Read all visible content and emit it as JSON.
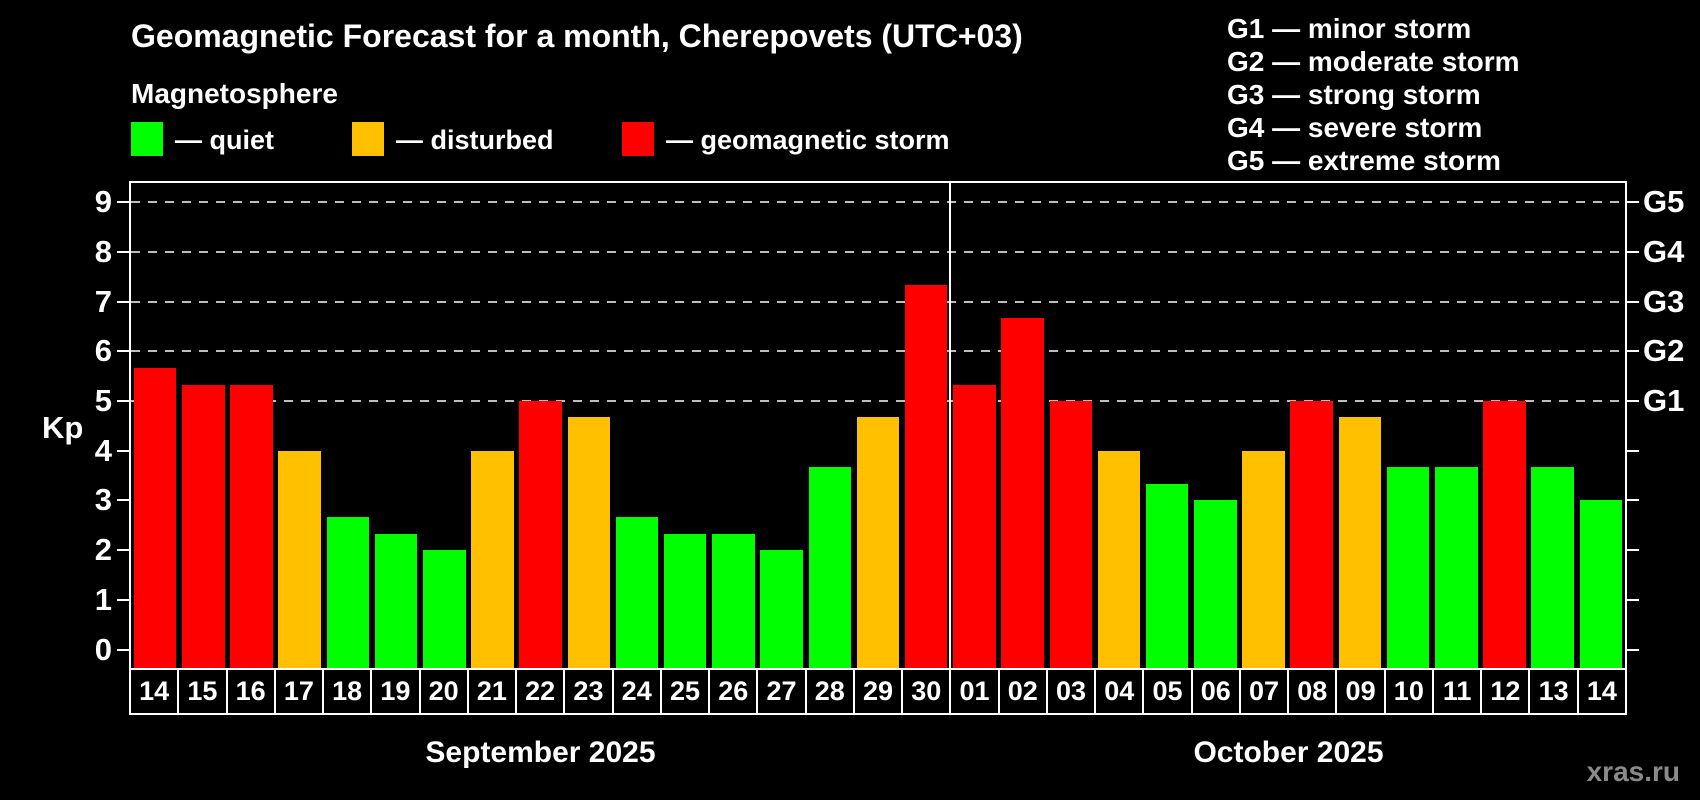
{
  "title": "Geomagnetic Forecast for a month, Cherepovets (UTC+03)",
  "subtitle": "Magnetosphere",
  "bar_legend": {
    "quiet": {
      "label": "— quiet",
      "color": "#00ff00"
    },
    "disturbed": {
      "label": "— disturbed",
      "color": "#ffc000"
    },
    "storm": {
      "label": "— geomagnetic storm",
      "color": "#ff0000"
    }
  },
  "storm_scale_legend": [
    "G1 — minor storm",
    "G2 — moderate storm",
    "G3 — strong storm",
    "G4 — severe storm",
    "G5 — extreme storm"
  ],
  "watermark": "xras.ru",
  "chart_data": {
    "type": "bar",
    "ylabel": "Kp",
    "ylim": [
      -0.4,
      9.4
    ],
    "yticks": [
      0,
      1,
      2,
      3,
      4,
      5,
      6,
      7,
      8,
      9
    ],
    "gridlines": [
      5,
      6,
      7,
      8,
      9
    ],
    "grid": "dashed horizontal lines at Kp 5 through 9",
    "legend_position": "top",
    "right_axis": [
      {
        "kp": 5,
        "label": "G1"
      },
      {
        "kp": 6,
        "label": "G2"
      },
      {
        "kp": 7,
        "label": "G3"
      },
      {
        "kp": 8,
        "label": "G4"
      },
      {
        "kp": 9,
        "label": "G5"
      }
    ],
    "colors": {
      "quiet": "#00ff00",
      "disturbed": "#ffc000",
      "storm": "#ff0000"
    },
    "groups": [
      {
        "label": "September 2025",
        "days": [
          "14",
          "15",
          "16",
          "17",
          "18",
          "19",
          "20",
          "21",
          "22",
          "23",
          "24",
          "25",
          "26",
          "27",
          "28",
          "29",
          "30"
        ],
        "values": [
          5.67,
          5.33,
          5.33,
          4,
          2.67,
          2.33,
          2,
          4,
          5,
          4.67,
          2.67,
          2.33,
          2.33,
          2,
          3.67,
          4.67,
          7.33
        ],
        "status": [
          "storm",
          "storm",
          "storm",
          "disturbed",
          "quiet",
          "quiet",
          "quiet",
          "disturbed",
          "storm",
          "disturbed",
          "quiet",
          "quiet",
          "quiet",
          "quiet",
          "quiet",
          "disturbed",
          "storm"
        ]
      },
      {
        "label": "October 2025",
        "days": [
          "01",
          "02",
          "03",
          "04",
          "05",
          "06",
          "07",
          "08",
          "09",
          "10",
          "11",
          "12",
          "13",
          "14"
        ],
        "values": [
          5.33,
          6.67,
          5,
          4,
          3.33,
          3,
          4,
          5,
          4.67,
          3.67,
          3.67,
          5,
          3.67,
          3
        ],
        "status": [
          "storm",
          "storm",
          "storm",
          "disturbed",
          "quiet",
          "quiet",
          "disturbed",
          "storm",
          "disturbed",
          "quiet",
          "quiet",
          "storm",
          "quiet",
          "quiet"
        ]
      }
    ]
  }
}
